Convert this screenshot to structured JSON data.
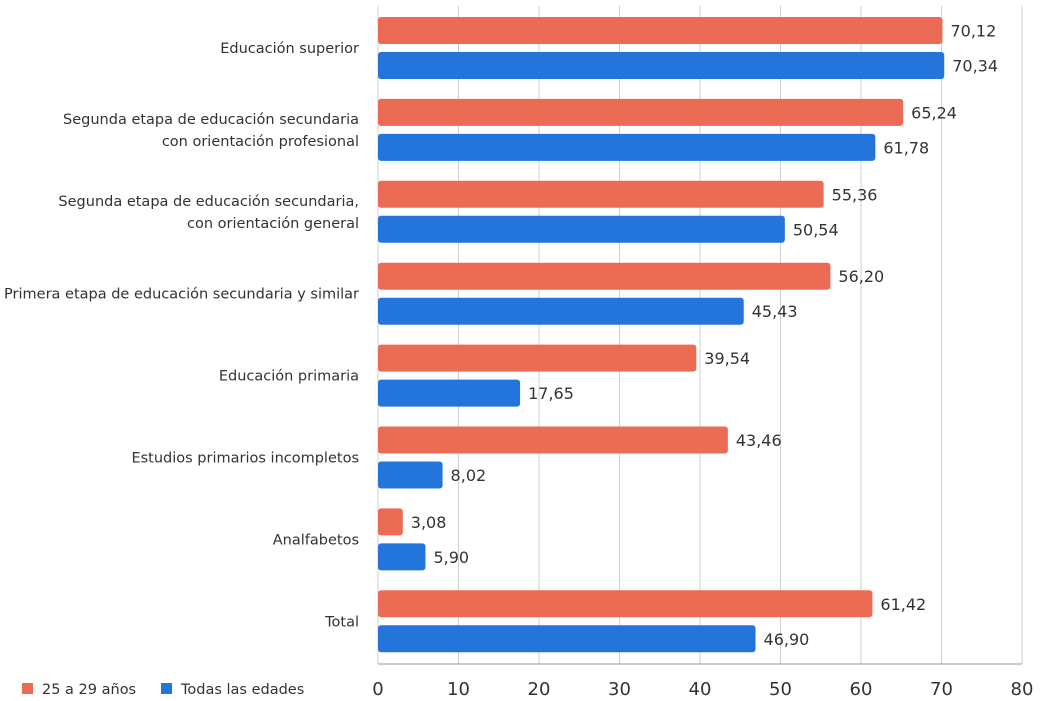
{
  "chart_data": {
    "type": "bar",
    "orientation": "horizontal",
    "categories": [
      [
        "Educación superior"
      ],
      [
        "Segunda etapa de educación secundaria",
        "con orientación profesional"
      ],
      [
        "Segunda etapa de educación secundaria,",
        "con orientación general"
      ],
      [
        "Primera etapa de educación secundaria y similar"
      ],
      [
        "Educación primaria"
      ],
      [
        "Estudios primarios incompletos"
      ],
      [
        "Analfabetos"
      ],
      [
        "Total"
      ]
    ],
    "series": [
      {
        "name": "25 a 29 años",
        "color": "#EC6B55",
        "values": [
          70.12,
          65.24,
          55.36,
          56.2,
          39.54,
          43.46,
          3.08,
          61.42
        ],
        "labels": [
          "70,12",
          "65,24",
          "55,36",
          "56,20",
          "39,54",
          "43,46",
          "3,08",
          "61,42"
        ]
      },
      {
        "name": "Todas las edades",
        "color": "#2375DB",
        "values": [
          70.34,
          61.78,
          50.54,
          45.43,
          17.65,
          8.02,
          5.9,
          46.9
        ],
        "labels": [
          "70,34",
          "61,78",
          "50,54",
          "45,43",
          "17,65",
          "8,02",
          "5,90",
          "46,90"
        ]
      }
    ],
    "xlim": [
      0,
      80
    ],
    "xticks": [
      "0",
      "10",
      "20",
      "30",
      "40",
      "50",
      "60",
      "70",
      "80"
    ],
    "grid": true,
    "legend_position": "bottom-left"
  }
}
